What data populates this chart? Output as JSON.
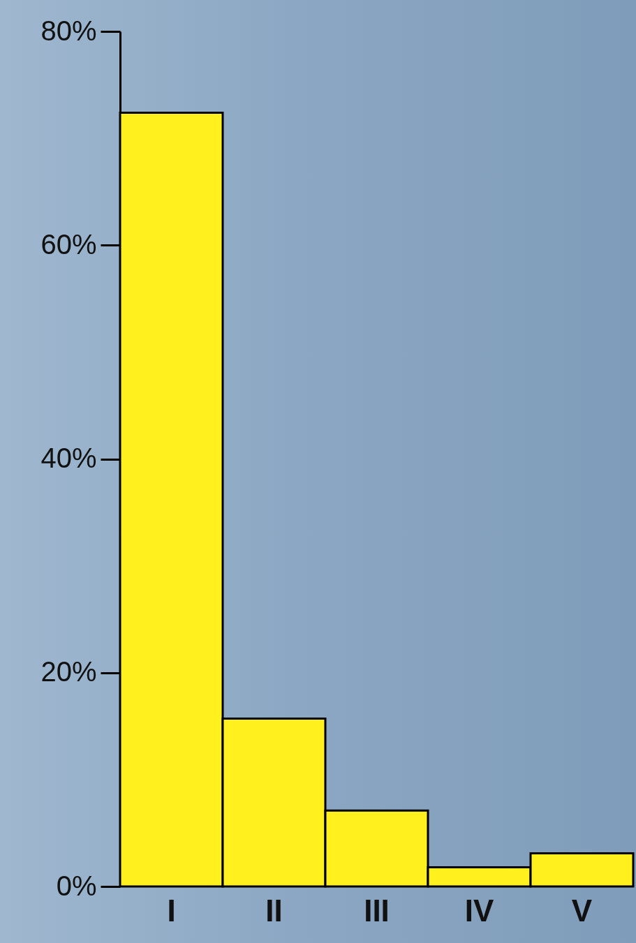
{
  "chart_data": {
    "type": "bar",
    "categories": [
      "I",
      "II",
      "III",
      "IV",
      "V"
    ],
    "values": [
      72.4,
      15.7,
      7.1,
      1.8,
      3.1
    ],
    "color": "#fff01e",
    "ylim": [
      0,
      80
    ],
    "yticks": [
      {
        "value": 0,
        "label": "0%"
      },
      {
        "value": 20,
        "label": "20%"
      },
      {
        "value": 40,
        "label": "40%"
      },
      {
        "value": 60,
        "label": "60%"
      },
      {
        "value": 80,
        "label": "80%"
      }
    ],
    "grid": false
  }
}
